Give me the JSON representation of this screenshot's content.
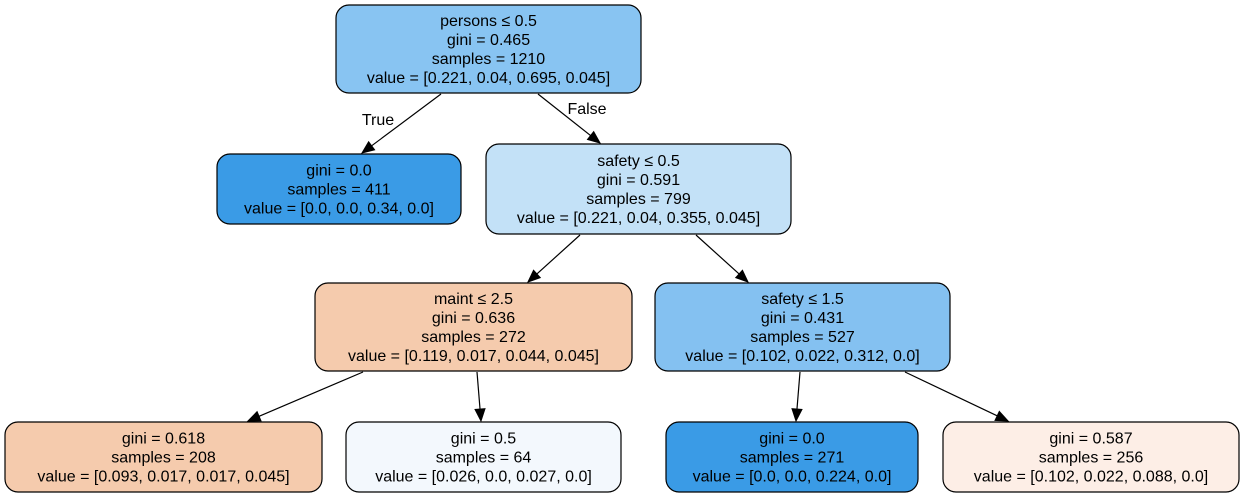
{
  "nodes": [
    {
      "id": "n0",
      "lines": [
        "persons ≤ 0.5",
        "gini = 0.465",
        "samples = 1210",
        "value = [0.221, 0.04, 0.695, 0.045]"
      ],
      "fill": "#88c4f2"
    },
    {
      "id": "n1",
      "lines": [
        "gini = 0.0",
        "samples = 411",
        "value = [0.0, 0.0, 0.34, 0.0]"
      ],
      "fill": "#3a9be6"
    },
    {
      "id": "n2",
      "lines": [
        "safety ≤ 0.5",
        "gini = 0.591",
        "samples = 799",
        "value = [0.221, 0.04, 0.355, 0.045]"
      ],
      "fill": "#c3e1f7"
    },
    {
      "id": "n3",
      "lines": [
        "maint ≤ 2.5",
        "gini = 0.636",
        "samples = 272",
        "value = [0.119, 0.017, 0.044, 0.045]"
      ],
      "fill": "#f5cbad"
    },
    {
      "id": "n4",
      "lines": [
        "safety ≤ 1.5",
        "gini = 0.431",
        "samples = 527",
        "value = [0.102, 0.022, 0.312, 0.0]"
      ],
      "fill": "#84c1f1"
    },
    {
      "id": "n5",
      "lines": [
        "gini = 0.618",
        "samples = 208",
        "value = [0.093, 0.017, 0.017, 0.045]"
      ],
      "fill": "#f5cbad"
    },
    {
      "id": "n6",
      "lines": [
        "gini = 0.5",
        "samples = 64",
        "value = [0.026, 0.0, 0.027, 0.0]"
      ],
      "fill": "#f3f8fd"
    },
    {
      "id": "n7",
      "lines": [
        "gini = 0.0",
        "samples = 271",
        "value = [0.0, 0.0, 0.224, 0.0]"
      ],
      "fill": "#3a9be6"
    },
    {
      "id": "n8",
      "lines": [
        "gini = 0.587",
        "samples = 256",
        "value = [0.102, 0.022, 0.088, 0.0]"
      ],
      "fill": "#fdeee6"
    }
  ],
  "edges": [
    {
      "from": "n0",
      "to": "n1",
      "label": "True"
    },
    {
      "from": "n0",
      "to": "n2",
      "label": "False"
    },
    {
      "from": "n2",
      "to": "n3",
      "label": ""
    },
    {
      "from": "n2",
      "to": "n4",
      "label": ""
    },
    {
      "from": "n3",
      "to": "n5",
      "label": ""
    },
    {
      "from": "n3",
      "to": "n6",
      "label": ""
    },
    {
      "from": "n4",
      "to": "n7",
      "label": ""
    },
    {
      "from": "n4",
      "to": "n8",
      "label": ""
    }
  ]
}
